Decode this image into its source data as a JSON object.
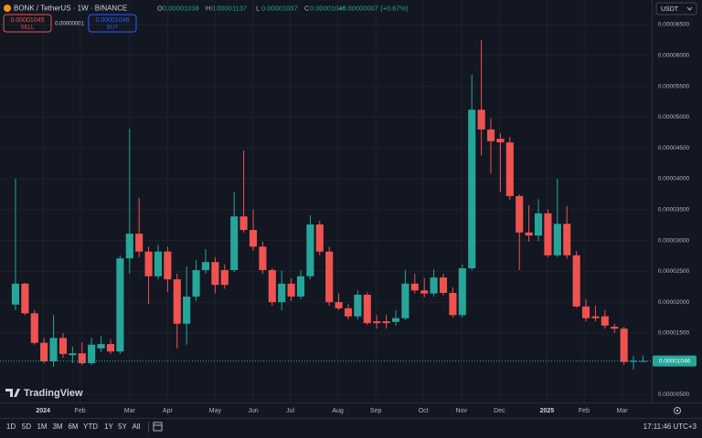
{
  "chart_data": {
    "type": "candlestick",
    "title": "BONK / TetherUS · 1W · BINANCE",
    "legend": [
      {
        "key": "O",
        "value": 1.038e-05,
        "label": "0.00001038"
      },
      {
        "key": "H",
        "value": 1.137e-05,
        "label": "0.00001137"
      },
      {
        "key": "L",
        "value": 1.037e-05,
        "label": "0.00001037"
      },
      {
        "key": "C",
        "value": 1.046e-05,
        "label": "0.00001046"
      }
    ],
    "change": {
      "value": 7e-08,
      "label": "+0.00000007 (+0.67%)"
    },
    "sell": {
      "value": 1.045e-05,
      "label": "0.00001045",
      "text": "SELL"
    },
    "spread": {
      "value": 1e-08,
      "label": "0.00000001"
    },
    "buy": {
      "value": 1.046e-05,
      "label": "0.00001046",
      "text": "BUY"
    },
    "last_price": {
      "value": 1.046e-05,
      "label": "0.00001046"
    },
    "currency": "USDT",
    "watermark": "TradingView",
    "up_color": "#26a69a",
    "down_color": "#ef5350",
    "grid": true,
    "xlim": [
      -1.63,
      66.92
    ],
    "ylim": [
      3e-06,
      6.9e-05
    ],
    "yticks": [
      {
        "value": 6.5e-05,
        "label": "0.00006500"
      },
      {
        "value": 6e-05,
        "label": "0.00006000"
      },
      {
        "value": 5.5e-05,
        "label": "0.00005500"
      },
      {
        "value": 5e-05,
        "label": "0.00005000"
      },
      {
        "value": 4.5e-05,
        "label": "0.00004500"
      },
      {
        "value": 4e-05,
        "label": "0.00004000"
      },
      {
        "value": 3.5e-05,
        "label": "0.00003500"
      },
      {
        "value": 3e-05,
        "label": "0.00003000"
      },
      {
        "value": 2.5e-05,
        "label": "0.00002500"
      },
      {
        "value": 2e-05,
        "label": "0.00002000"
      },
      {
        "value": 1.5e-05,
        "label": "0.00001500"
      },
      {
        "value": 5e-06,
        "label": "0.00000500"
      }
    ],
    "xticks": [
      {
        "value": 2.9,
        "label": "2024"
      },
      {
        "value": 6.8,
        "label": "Feb"
      },
      {
        "value": 12,
        "label": "Mar"
      },
      {
        "value": 16,
        "label": "Apr"
      },
      {
        "value": 21,
        "label": "May"
      },
      {
        "value": 25,
        "label": "Jun"
      },
      {
        "value": 28.9,
        "label": "Jul"
      },
      {
        "value": 33.9,
        "label": "Aug"
      },
      {
        "value": 37.9,
        "label": "Sep"
      },
      {
        "value": 42.9,
        "label": "Oct"
      },
      {
        "value": 46.9,
        "label": "Nov"
      },
      {
        "value": 50.9,
        "label": "Dec"
      },
      {
        "value": 55.9,
        "label": "2025"
      },
      {
        "value": 59.8,
        "label": "Feb"
      },
      {
        "value": 63.8,
        "label": "Mar"
      }
    ],
    "open": [
      1.96e-05,
      2.3e-05,
      1.82e-05,
      1.34e-05,
      1.04e-05,
      1.42e-05,
      1.14e-05,
      1.17e-05,
      1.01e-05,
      1.25e-05,
      1.32e-05,
      1.2e-05,
      2.71e-05,
      3.11e-05,
      2.82e-05,
      2.42e-05,
      2.82e-05,
      2.37e-05,
      1.65e-05,
      2.09e-05,
      2.52e-05,
      2.65e-05,
      2.52e-05,
      2.52e-05,
      3.39e-05,
      3.17e-05,
      2.9e-05,
      2.52e-05,
      2e-05,
      2.3e-05,
      2.09e-05,
      2.42e-05,
      3.26e-05,
      2.82e-05,
      2e-05,
      1.9e-05,
      1.77e-05,
      2.12e-05,
      1.69e-05,
      1.69e-05,
      1.68e-05,
      1.74e-05,
      2.3e-05,
      2.19e-05,
      2.14e-05,
      2.4e-05,
      2.15e-05,
      1.79e-05,
      2.55e-05,
      5.12e-05,
      4.8e-05,
      4.65e-05,
      4.59e-05,
      3.72e-05,
      3.13e-05,
      3.08e-05,
      3.44e-05,
      2.76e-05,
      3.27e-05,
      2.76e-05,
      1.93e-05,
      1.77e-05,
      1.77e-05,
      1.6e-05,
      1.57e-05,
      1.03e-05,
      1.038e-05
    ],
    "high": [
      4e-05,
      2.31e-05,
      1.87e-05,
      1.42e-05,
      1.79e-05,
      1.5e-05,
      1.28e-05,
      1.35e-05,
      1.42e-05,
      1.45e-05,
      1.4e-05,
      2.76e-05,
      4.81e-05,
      3.69e-05,
      2.9e-05,
      2.93e-05,
      2.9e-05,
      2.46e-05,
      2.58e-05,
      2.68e-05,
      2.86e-05,
      2.73e-05,
      2.61e-05,
      3.79e-05,
      4.46e-05,
      3.5e-05,
      2.98e-05,
      2.55e-05,
      2.51e-05,
      2.39e-05,
      2.52e-05,
      3.41e-05,
      3.32e-05,
      2.9e-05,
      2.14e-05,
      1.97e-05,
      2.19e-05,
      2.16e-05,
      1.79e-05,
      1.79e-05,
      1.87e-05,
      2.52e-05,
      2.46e-05,
      2.39e-05,
      2.53e-05,
      2.46e-05,
      2.24e-05,
      2.61e-05,
      5.69e-05,
      6.25e-05,
      4.98e-05,
      4.74e-05,
      4.68e-05,
      3.75e-05,
      3.57e-05,
      3.67e-05,
      3.5e-05,
      4e-05,
      3.56e-05,
      2.83e-05,
      2.05e-05,
      1.94e-05,
      1.87e-05,
      1.65e-05,
      1.6e-05,
      1.13e-05,
      1.137e-05
    ],
    "low": [
      1.87e-05,
      1.79e-05,
      1.31e-05,
      1.01e-05,
      9.5e-06,
      1.1e-05,
      1.01e-05,
      9.8e-06,
      9.8e-06,
      1.19e-05,
      1.16e-05,
      1.16e-05,
      2.46e-05,
      2.73e-05,
      1.97e-05,
      2.37e-05,
      2.16e-05,
      1.25e-05,
      1.31e-05,
      2.02e-05,
      2.46e-05,
      2.14e-05,
      2.22e-05,
      2.49e-05,
      3.13e-05,
      2.83e-05,
      2.46e-05,
      1.94e-05,
      1.87e-05,
      2.02e-05,
      2.05e-05,
      2.37e-05,
      2.76e-05,
      1.94e-05,
      1.87e-05,
      1.72e-05,
      1.72e-05,
      1.63e-05,
      1.57e-05,
      1.57e-05,
      1.62e-05,
      1.71e-05,
      2.14e-05,
      2.08e-05,
      2.09e-05,
      2.11e-05,
      1.75e-05,
      1.75e-05,
      2.52e-05,
      4.38e-05,
      4.09e-05,
      3.79e-05,
      3.66e-05,
      2.52e-05,
      2.98e-05,
      2.99e-05,
      2.73e-05,
      2.73e-05,
      2.71e-05,
      1.91e-05,
      1.69e-05,
      1.69e-05,
      1.57e-05,
      1.5e-05,
      9.8e-06,
      9.1e-06,
      1.037e-05
    ],
    "close": [
      2.3e-05,
      1.82e-05,
      1.34e-05,
      1.04e-05,
      1.42e-05,
      1.16e-05,
      1.17e-05,
      1.01e-05,
      1.31e-05,
      1.32e-05,
      1.2e-05,
      2.71e-05,
      3.11e-05,
      2.82e-05,
      2.42e-05,
      2.82e-05,
      2.37e-05,
      1.65e-05,
      2.09e-05,
      2.52e-05,
      2.65e-05,
      2.28e-05,
      2.28e-05,
      3.39e-05,
      3.17e-05,
      2.9e-05,
      2.52e-05,
      2e-05,
      2.3e-05,
      2.09e-05,
      2.42e-05,
      3.26e-05,
      2.82e-05,
      2e-05,
      1.9e-05,
      1.77e-05,
      2.12e-05,
      1.66e-05,
      1.66e-05,
      1.66e-05,
      1.74e-05,
      2.3e-05,
      2.19e-05,
      2.14e-05,
      2.4e-05,
      2.15e-05,
      1.79e-05,
      2.55e-05,
      5.12e-05,
      4.8e-05,
      4.61e-05,
      4.59e-05,
      3.72e-05,
      3.13e-05,
      3.08e-05,
      3.44e-05,
      2.76e-05,
      3.27e-05,
      2.76e-05,
      1.93e-05,
      1.74e-05,
      1.74e-05,
      1.62e-05,
      1.57e-05,
      1.03e-05,
      1.05e-05,
      1.046e-05
    ]
  },
  "toolbar": {
    "ranges": [
      "1D",
      "5D",
      "1M",
      "3M",
      "6M",
      "YTD",
      "1Y",
      "5Y",
      "All"
    ],
    "time": "17:11:46 UTC+3"
  }
}
